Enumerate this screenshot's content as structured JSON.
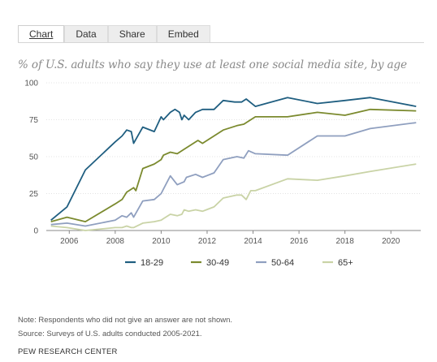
{
  "tabs": [
    {
      "label": "Chart",
      "active": true
    },
    {
      "label": "Data",
      "active": false
    },
    {
      "label": "Share",
      "active": false
    },
    {
      "label": "Embed",
      "active": false
    }
  ],
  "chart_data": {
    "type": "line",
    "title": "% of U.S. adults who say they use at least one social media site, by age",
    "xlabel": "",
    "ylabel": "",
    "xlim": [
      2005,
      2021.3
    ],
    "ylim": [
      0,
      100
    ],
    "x_ticks": [
      2006,
      2008,
      2010,
      2012,
      2014,
      2016,
      2018,
      2020
    ],
    "y_ticks": [
      0,
      25,
      50,
      75,
      100
    ],
    "grid": "horizontal",
    "legend_position": "bottom-center",
    "series": [
      {
        "name": "18-29",
        "color": "#1f5e80",
        "points": [
          [
            2005.2,
            7
          ],
          [
            2005.9,
            16
          ],
          [
            2006.7,
            41
          ],
          [
            2008.0,
            60
          ],
          [
            2008.3,
            64
          ],
          [
            2008.5,
            68
          ],
          [
            2008.7,
            67
          ],
          [
            2008.8,
            59
          ],
          [
            2009.2,
            70
          ],
          [
            2009.7,
            67
          ],
          [
            2010.0,
            77
          ],
          [
            2010.1,
            75
          ],
          [
            2010.4,
            80
          ],
          [
            2010.6,
            82
          ],
          [
            2010.8,
            80
          ],
          [
            2010.9,
            75
          ],
          [
            2011.0,
            78
          ],
          [
            2011.2,
            75
          ],
          [
            2011.5,
            80
          ],
          [
            2011.8,
            82
          ],
          [
            2012.3,
            82
          ],
          [
            2012.7,
            88
          ],
          [
            2013.2,
            87
          ],
          [
            2013.5,
            87
          ],
          [
            2013.7,
            89
          ],
          [
            2014.1,
            84
          ],
          [
            2015.5,
            90
          ],
          [
            2016.8,
            86
          ],
          [
            2018.0,
            88
          ],
          [
            2019.1,
            90
          ],
          [
            2021.1,
            84
          ]
        ]
      },
      {
        "name": "30-49",
        "color": "#7b8a2e",
        "points": [
          [
            2005.2,
            6
          ],
          [
            2005.9,
            9
          ],
          [
            2006.7,
            6
          ],
          [
            2008.0,
            18
          ],
          [
            2008.3,
            21
          ],
          [
            2008.5,
            26
          ],
          [
            2008.8,
            29
          ],
          [
            2008.9,
            27
          ],
          [
            2009.2,
            42
          ],
          [
            2009.7,
            45
          ],
          [
            2010.0,
            48
          ],
          [
            2010.1,
            51
          ],
          [
            2010.4,
            53
          ],
          [
            2010.7,
            52
          ],
          [
            2011.0,
            55
          ],
          [
            2011.6,
            61
          ],
          [
            2011.8,
            59
          ],
          [
            2012.3,
            64
          ],
          [
            2012.7,
            68
          ],
          [
            2013.3,
            71
          ],
          [
            2013.6,
            72
          ],
          [
            2014.1,
            77
          ],
          [
            2015.5,
            77
          ],
          [
            2016.8,
            80
          ],
          [
            2018.0,
            78
          ],
          [
            2019.1,
            82
          ],
          [
            2021.1,
            81
          ]
        ]
      },
      {
        "name": "50-64",
        "color": "#8f9fbf",
        "points": [
          [
            2005.2,
            4
          ],
          [
            2005.9,
            5
          ],
          [
            2006.7,
            3
          ],
          [
            2008.0,
            7
          ],
          [
            2008.3,
            10
          ],
          [
            2008.5,
            9
          ],
          [
            2008.7,
            12
          ],
          [
            2008.8,
            9
          ],
          [
            2009.2,
            20
          ],
          [
            2009.7,
            21
          ],
          [
            2010.0,
            25
          ],
          [
            2010.1,
            28
          ],
          [
            2010.4,
            37
          ],
          [
            2010.7,
            31
          ],
          [
            2011.0,
            33
          ],
          [
            2011.1,
            36
          ],
          [
            2011.5,
            38
          ],
          [
            2011.8,
            36
          ],
          [
            2012.3,
            39
          ],
          [
            2012.7,
            48
          ],
          [
            2013.3,
            50
          ],
          [
            2013.6,
            49
          ],
          [
            2013.8,
            54
          ],
          [
            2014.1,
            52
          ],
          [
            2015.5,
            51
          ],
          [
            2016.8,
            64
          ],
          [
            2018.0,
            64
          ],
          [
            2019.1,
            69
          ],
          [
            2021.1,
            73
          ]
        ]
      },
      {
        "name": "65+",
        "color": "#c9d3a6",
        "points": [
          [
            2005.2,
            3
          ],
          [
            2005.9,
            2
          ],
          [
            2006.7,
            0
          ],
          [
            2008.0,
            2
          ],
          [
            2008.3,
            2
          ],
          [
            2008.5,
            3
          ],
          [
            2008.7,
            2
          ],
          [
            2008.8,
            2
          ],
          [
            2009.2,
            5
          ],
          [
            2009.7,
            6
          ],
          [
            2010.0,
            7
          ],
          [
            2010.1,
            8
          ],
          [
            2010.4,
            11
          ],
          [
            2010.7,
            10
          ],
          [
            2010.9,
            11
          ],
          [
            2011.0,
            14
          ],
          [
            2011.2,
            13
          ],
          [
            2011.5,
            14
          ],
          [
            2011.8,
            13
          ],
          [
            2012.3,
            16
          ],
          [
            2012.7,
            22
          ],
          [
            2013.3,
            24
          ],
          [
            2013.5,
            24
          ],
          [
            2013.7,
            21
          ],
          [
            2013.9,
            27
          ],
          [
            2014.1,
            27
          ],
          [
            2015.5,
            35
          ],
          [
            2016.8,
            34
          ],
          [
            2018.0,
            37
          ],
          [
            2019.1,
            40
          ],
          [
            2021.1,
            45
          ]
        ]
      }
    ]
  },
  "legend": [
    "18-29",
    "30-49",
    "50-64",
    "65+"
  ],
  "note": "Note: Respondents who did not give an answer are not shown.",
  "source": "Source: Surveys of U.S. adults conducted 2005-2021.",
  "brand": "PEW RESEARCH CENTER"
}
